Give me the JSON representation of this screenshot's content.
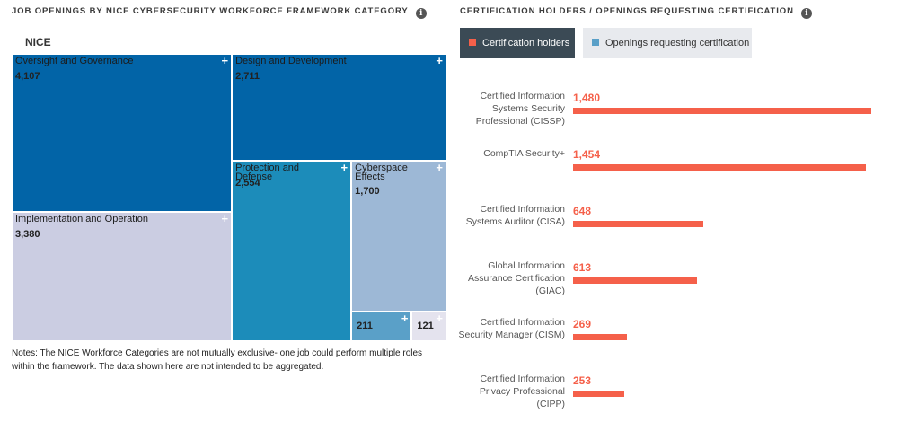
{
  "left_title": "JOB OPENINGS BY NICE CYBERSECURITY WORKFORCE FRAMEWORK CATEGORY",
  "right_title": "CERTIFICATION HOLDERS / OPENINGS REQUESTING CERTIFICATION",
  "info_icon": "i",
  "notes": "Notes: The NICE Workforce Categories are not mutually exclusive- one job could perform multiple roles within the framework. The data shown here are not intended to be aggregated.",
  "colors": {
    "accent": "#f5604a",
    "legend_active_bg": "#3b4a55",
    "legend_inactive_bg": "#e8eaee",
    "openings_swatch": "#5aa0c8"
  },
  "chart_data": [
    {
      "type": "treemap",
      "root": "NICE",
      "items": [
        {
          "name": "Oversight and Governance",
          "value": 4107,
          "value_label": "4,107",
          "color": "#0264a7"
        },
        {
          "name": "Design and Development",
          "value": 2711,
          "value_label": "2,711",
          "color": "#0264a7"
        },
        {
          "name": "Implementation and Operation",
          "value": 3380,
          "value_label": "3,380",
          "color": "#cbcde2"
        },
        {
          "name": "Protection and Defense",
          "value": 2554,
          "value_label": "2,554",
          "color": "#1c8cba"
        },
        {
          "name": "Cyberspace Effects",
          "value": 1700,
          "value_label": "1,700",
          "color": "#9db8d6"
        },
        {
          "name": "",
          "value": 211,
          "value_label": "211",
          "color": "#5aa0c8"
        },
        {
          "name": "",
          "value": 121,
          "value_label": "121",
          "color": "#e4e3ee"
        }
      ]
    },
    {
      "type": "bar",
      "orientation": "horizontal",
      "legend": [
        {
          "label": "Certification holders",
          "active": true
        },
        {
          "label": "Openings requesting certification",
          "active": false
        }
      ],
      "series": [
        {
          "name": "Certification holders",
          "color": "#f5604a"
        }
      ],
      "categories": [
        "Certified Information Systems Security Professional (CISSP)",
        "CompTIA Security+",
        "Certified Information Systems Auditor (CISA)",
        "Global Information Assurance Certification (GIAC)",
        "Certified Information Security Manager (CISM)",
        "Certified Information Privacy Professional (CIPP)"
      ],
      "values": [
        1480,
        1454,
        648,
        613,
        269,
        253
      ],
      "value_labels": [
        "1,480",
        "1,454",
        "648",
        "613",
        "269",
        "253"
      ]
    }
  ]
}
